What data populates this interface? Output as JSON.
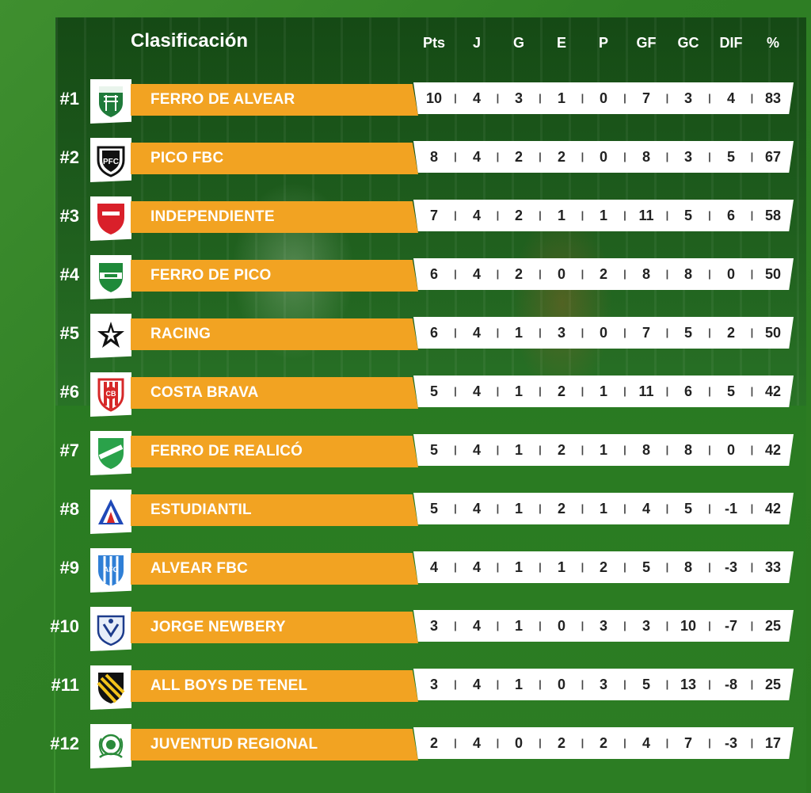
{
  "header": {
    "title": "Clasificación",
    "columns": [
      "Pts",
      "J",
      "G",
      "E",
      "P",
      "GF",
      "GC",
      "DIF",
      "%"
    ]
  },
  "colors": {
    "name_bar": "#f2a322",
    "background": "#2b7a21",
    "stats_bar": "#ffffff"
  },
  "teams": [
    {
      "rank": "#1",
      "name": "FERRO DE ALVEAR",
      "logo": "ferro-alvear-crest-icon",
      "stats": [
        "10",
        "4",
        "3",
        "1",
        "0",
        "7",
        "3",
        "4",
        "83"
      ]
    },
    {
      "rank": "#2",
      "name": "PICO FBC",
      "logo": "pico-fbc-crest-icon",
      "stats": [
        "8",
        "4",
        "2",
        "2",
        "0",
        "8",
        "3",
        "5",
        "67"
      ]
    },
    {
      "rank": "#3",
      "name": "INDEPENDIENTE",
      "logo": "independiente-crest-icon",
      "stats": [
        "7",
        "4",
        "2",
        "1",
        "1",
        "11",
        "5",
        "6",
        "58"
      ]
    },
    {
      "rank": "#4",
      "name": "FERRO DE PICO",
      "logo": "ferro-pico-crest-icon",
      "stats": [
        "6",
        "4",
        "2",
        "0",
        "2",
        "8",
        "8",
        "0",
        "50"
      ]
    },
    {
      "rank": "#5",
      "name": "RACING",
      "logo": "racing-star-icon",
      "stats": [
        "6",
        "4",
        "1",
        "3",
        "0",
        "7",
        "5",
        "2",
        "50"
      ]
    },
    {
      "rank": "#6",
      "name": "COSTA BRAVA",
      "logo": "costa-brava-crest-icon",
      "stats": [
        "5",
        "4",
        "1",
        "2",
        "1",
        "11",
        "6",
        "5",
        "42"
      ]
    },
    {
      "rank": "#7",
      "name": "FERRO DE REALICÓ",
      "logo": "ferro-realico-crest-icon",
      "stats": [
        "5",
        "4",
        "1",
        "2",
        "1",
        "8",
        "8",
        "0",
        "42"
      ]
    },
    {
      "rank": "#8",
      "name": "ESTUDIANTIL",
      "logo": "estudiantil-crest-icon",
      "stats": [
        "5",
        "4",
        "1",
        "2",
        "1",
        "4",
        "5",
        "-1",
        "42"
      ]
    },
    {
      "rank": "#9",
      "name": "ALVEAR FBC",
      "logo": "alvear-fbc-crest-icon",
      "stats": [
        "4",
        "4",
        "1",
        "1",
        "2",
        "5",
        "8",
        "-3",
        "33"
      ]
    },
    {
      "rank": "#10",
      "name": "JORGE NEWBERY",
      "logo": "jorge-newbery-crest-icon",
      "stats": [
        "3",
        "4",
        "1",
        "0",
        "3",
        "3",
        "10",
        "-7",
        "25"
      ]
    },
    {
      "rank": "#11",
      "name": "ALL BOYS DE TENEL",
      "logo": "all-boys-crest-icon",
      "stats": [
        "3",
        "4",
        "1",
        "0",
        "3",
        "5",
        "13",
        "-8",
        "25"
      ]
    },
    {
      "rank": "#12",
      "name": "JUVENTUD REGIONAL",
      "logo": "juventud-regional-crest-icon",
      "stats": [
        "2",
        "4",
        "0",
        "2",
        "2",
        "4",
        "7",
        "-3",
        "17"
      ]
    }
  ]
}
